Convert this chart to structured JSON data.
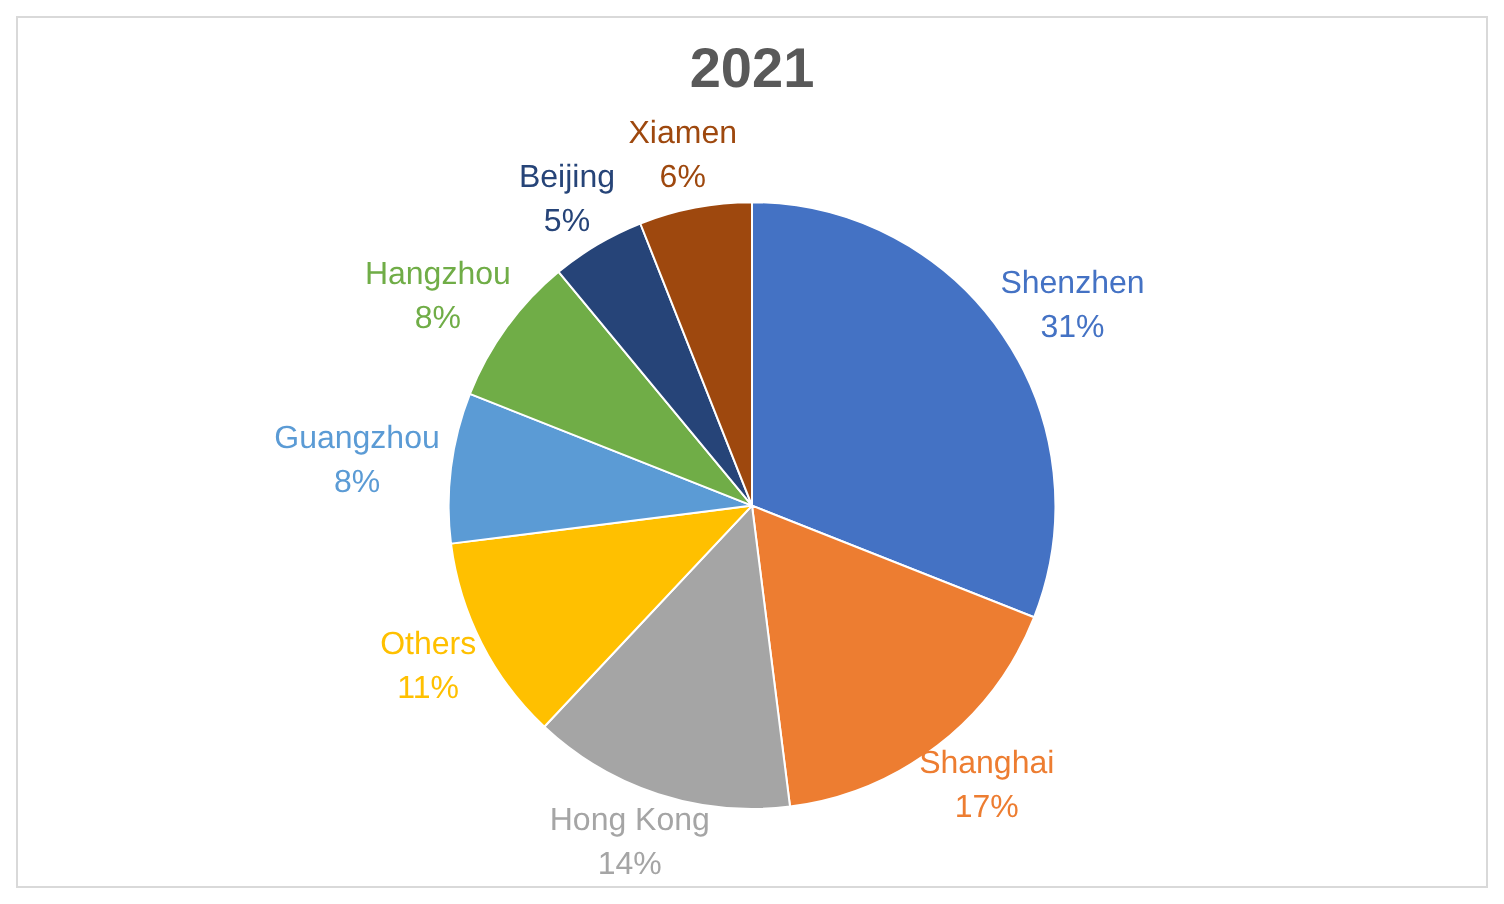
{
  "chart_data": {
    "type": "pie",
    "title": "2021",
    "categories": [
      "Shenzhen",
      "Shanghai",
      "Hong Kong",
      "Others",
      "Guangzhou",
      "Hangzhou",
      "Beijing",
      "Xiamen"
    ],
    "values": [
      31,
      17,
      14,
      11,
      8,
      8,
      5,
      6
    ],
    "colors": [
      "#4472c4",
      "#ed7d31",
      "#a5a5a5",
      "#ffc000",
      "#5b9bd5",
      "#70ad47",
      "#264478",
      "#9e480e"
    ],
    "value_labels": [
      "31%",
      "17%",
      "14%",
      "11%",
      "8%",
      "8%",
      "5%",
      "6%"
    ],
    "legend": false
  }
}
